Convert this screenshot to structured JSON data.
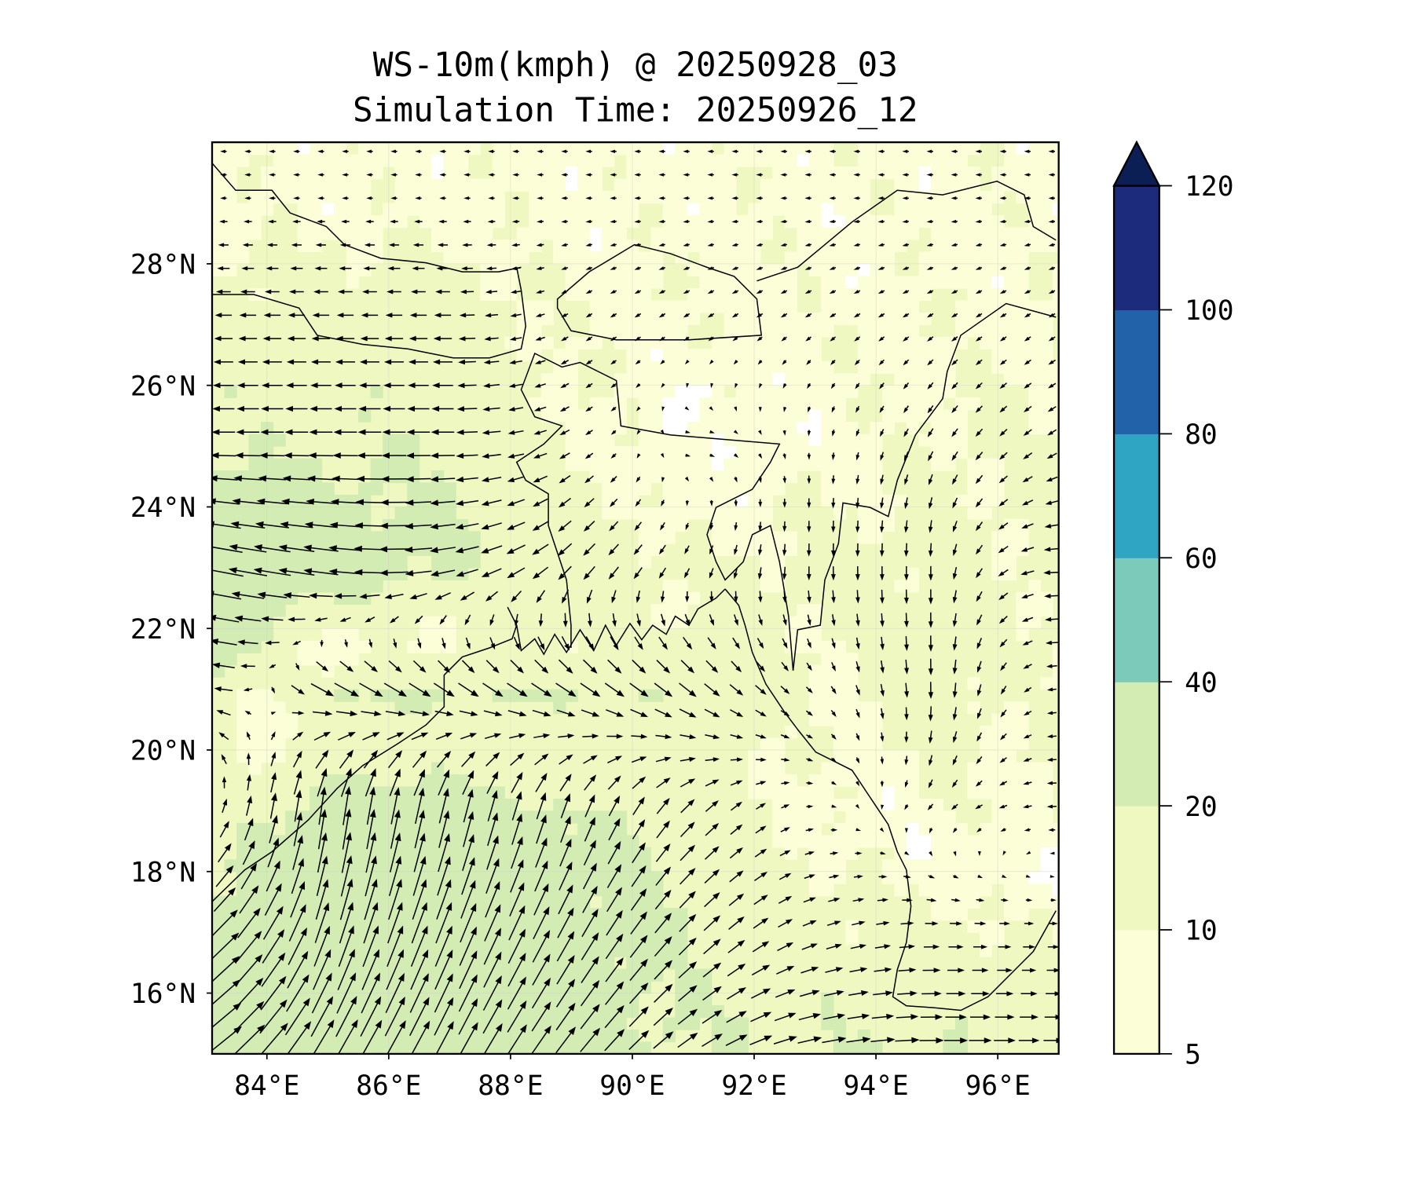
{
  "chart_data": {
    "type": "heatmap",
    "subtype": "filled contour with wind vectors",
    "title": "WS-10m(kmph) @ 20250928_03",
    "subtitle": "Simulation Time: 20250926_12",
    "xlabel": "",
    "ylabel": "",
    "xlim": [
      83.1,
      97.0
    ],
    "ylim": [
      15.0,
      30.0
    ],
    "x_ticks": [
      84,
      86,
      88,
      90,
      92,
      94,
      96
    ],
    "x_tick_labels": [
      "84°E",
      "86°E",
      "88°E",
      "90°E",
      "92°E",
      "94°E",
      "96°E"
    ],
    "y_ticks": [
      16,
      18,
      20,
      22,
      24,
      26,
      28
    ],
    "y_tick_labels": [
      "16°N",
      "18°N",
      "20°N",
      "22°N",
      "24°N",
      "26°N",
      "28°N"
    ],
    "grid": true,
    "colorbar": {
      "levels": [
        5,
        10,
        20,
        40,
        60,
        80,
        100,
        120
      ],
      "tick_labels": [
        "5",
        "10",
        "20",
        "40",
        "60",
        "80",
        "100",
        "120"
      ],
      "colors": [
        "#fbfed6",
        "#eff8c0",
        "#d2ecb4",
        "#7ccab9",
        "#2fa4c3",
        "#2262a9",
        "#1d2b7d"
      ],
      "extend_color": "#0b1f55",
      "extend": "max",
      "placement": "right"
    },
    "wind_field_kmph": {
      "lons": [
        83,
        85,
        87,
        89,
        91,
        93,
        95,
        97
      ],
      "lats": [
        29,
        27,
        25,
        23,
        21,
        19,
        17,
        15
      ],
      "u": [
        [
          -3,
          -3,
          -3,
          -3,
          -3,
          -3,
          -3,
          -3
        ],
        [
          -10,
          -10,
          -10,
          -3,
          -3,
          -3,
          -3,
          -3
        ],
        [
          -14,
          -14,
          -14,
          -5,
          3,
          0,
          -3,
          -5
        ],
        [
          -25,
          -22,
          -15,
          -8,
          -3,
          0,
          0,
          -10
        ],
        [
          -15,
          15,
          12,
          12,
          10,
          3,
          0,
          -5
        ],
        [
          3,
          3,
          5,
          5,
          8,
          3,
          -3,
          -5
        ],
        [
          18,
          8,
          10,
          10,
          10,
          8,
          8,
          5
        ],
        [
          22,
          15,
          12,
          12,
          12,
          15,
          15,
          12
        ]
      ],
      "v": [
        [
          0,
          0,
          0,
          0,
          0,
          0,
          0,
          0
        ],
        [
          0,
          0,
          0,
          -2,
          -2,
          -2,
          -2,
          -2
        ],
        [
          0,
          0,
          0,
          -3,
          0,
          -3,
          -5,
          -3
        ],
        [
          5,
          3,
          -3,
          -8,
          -5,
          -8,
          -8,
          0
        ],
        [
          3,
          -8,
          -8,
          -8,
          -8,
          -3,
          -10,
          0
        ],
        [
          5,
          25,
          22,
          15,
          8,
          0,
          -3,
          0
        ],
        [
          15,
          25,
          25,
          18,
          10,
          3,
          0,
          0
        ],
        [
          15,
          25,
          22,
          15,
          8,
          3,
          0,
          0
        ]
      ]
    }
  }
}
